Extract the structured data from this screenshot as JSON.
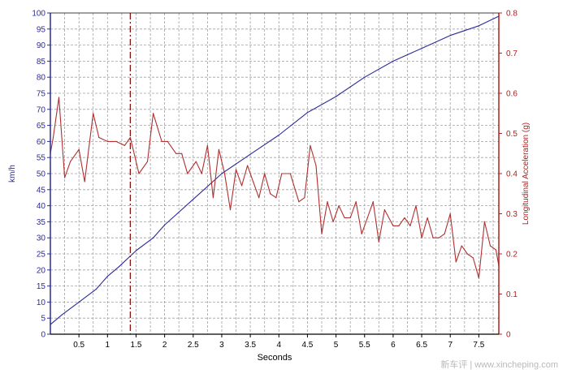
{
  "watermark": "新车评 | www.xincheping.com",
  "colors": {
    "left_axis": "#2b2b9a",
    "right_axis": "#b02020",
    "speed_line": "#2b2b9a",
    "accel_line": "#b03030",
    "marker_line": "#8a1010",
    "grid": "#a0a0a0",
    "axis_text": "#000000"
  },
  "chart_data": {
    "type": "line",
    "xlabel": "Seconds",
    "ylabel_left": "km/h",
    "ylabel_right": "Longitudinal Acceleration (g)",
    "xlim": [
      0,
      7.85
    ],
    "ylim_left": [
      0,
      100
    ],
    "ylim_right": [
      0,
      0.8
    ],
    "x_ticks": [
      "0.5",
      "1",
      "1.5",
      "2",
      "2.5",
      "3",
      "3.5",
      "4",
      "4.5",
      "5",
      "5.5",
      "6",
      "6.5",
      "7",
      "7.5"
    ],
    "y_left_ticks": [
      "0",
      "5",
      "10",
      "15",
      "20",
      "25",
      "30",
      "35",
      "40",
      "45",
      "50",
      "55",
      "60",
      "65",
      "70",
      "75",
      "80",
      "85",
      "90",
      "95",
      "100"
    ],
    "y_right_ticks": [
      "0",
      "0.1",
      "0.2",
      "0.3",
      "0.4",
      "0.5",
      "0.6",
      "0.7",
      "0.8"
    ],
    "grid": true,
    "marker_x": 1.4,
    "series": [
      {
        "axis": "left",
        "x": [
          0,
          0.2,
          0.5,
          0.8,
          1.0,
          1.2,
          1.5,
          1.8,
          2.0,
          2.5,
          3.0,
          3.5,
          4.0,
          4.5,
          5.0,
          5.5,
          6.0,
          6.5,
          7.0,
          7.5,
          7.85
        ],
        "values": [
          3,
          6,
          10,
          14,
          18,
          21,
          26,
          30,
          34,
          42,
          50,
          56,
          62,
          69,
          74,
          80,
          85,
          89,
          93,
          96,
          99
        ]
      },
      {
        "axis": "right",
        "x": [
          0,
          0.05,
          0.15,
          0.25,
          0.35,
          0.5,
          0.6,
          0.75,
          0.85,
          1.0,
          1.15,
          1.3,
          1.4,
          1.55,
          1.7,
          1.8,
          1.95,
          2.05,
          2.2,
          2.3,
          2.4,
          2.55,
          2.65,
          2.75,
          2.85,
          2.95,
          3.05,
          3.15,
          3.25,
          3.35,
          3.45,
          3.55,
          3.65,
          3.75,
          3.85,
          3.95,
          4.05,
          4.2,
          4.35,
          4.45,
          4.55,
          4.65,
          4.75,
          4.85,
          4.95,
          5.05,
          5.15,
          5.25,
          5.35,
          5.45,
          5.55,
          5.65,
          5.75,
          5.85,
          6.0,
          6.1,
          6.2,
          6.3,
          6.4,
          6.5,
          6.6,
          6.7,
          6.8,
          6.9,
          7.0,
          7.1,
          7.2,
          7.3,
          7.4,
          7.5,
          7.6,
          7.7,
          7.8,
          7.85
        ],
        "values": [
          0.45,
          0.49,
          0.59,
          0.39,
          0.43,
          0.46,
          0.38,
          0.55,
          0.49,
          0.48,
          0.48,
          0.47,
          0.49,
          0.4,
          0.43,
          0.55,
          0.48,
          0.48,
          0.45,
          0.45,
          0.4,
          0.43,
          0.4,
          0.47,
          0.34,
          0.46,
          0.4,
          0.31,
          0.41,
          0.37,
          0.42,
          0.38,
          0.34,
          0.4,
          0.35,
          0.34,
          0.4,
          0.4,
          0.33,
          0.34,
          0.47,
          0.42,
          0.25,
          0.33,
          0.28,
          0.32,
          0.29,
          0.29,
          0.33,
          0.25,
          0.29,
          0.33,
          0.23,
          0.31,
          0.27,
          0.27,
          0.29,
          0.27,
          0.32,
          0.24,
          0.29,
          0.24,
          0.24,
          0.25,
          0.3,
          0.18,
          0.22,
          0.2,
          0.19,
          0.14,
          0.28,
          0.22,
          0.21,
          0.17
        ]
      }
    ]
  }
}
